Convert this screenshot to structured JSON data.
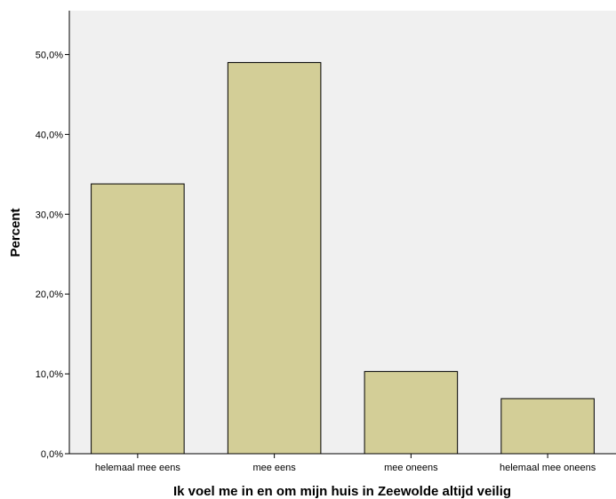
{
  "chart_data": {
    "type": "bar",
    "categories": [
      "helemaal mee eens",
      "mee eens",
      "mee oneens",
      "helemaal mee oneens"
    ],
    "values": [
      33.8,
      49.0,
      10.3,
      6.9
    ],
    "xlabel": "Ik voel me in en om mijn huis in Zeewolde altijd veilig",
    "ylabel": "Percent",
    "ylim": [
      0,
      55.5
    ],
    "yticks": [
      0,
      10,
      20,
      30,
      40,
      50
    ],
    "ytick_labels": [
      "0,0%",
      "10,0%",
      "20,0%",
      "30,0%",
      "40,0%",
      "50,0%"
    ],
    "grid": false,
    "colors": {
      "bar_fill": "#d3ce97",
      "bar_stroke": "#000000",
      "plot_background": "#f0f0f0"
    }
  }
}
